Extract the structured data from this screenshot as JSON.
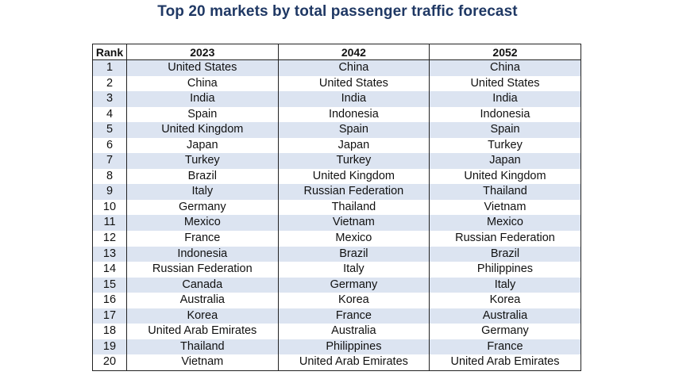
{
  "title": "Top 20 markets by total passenger traffic forecast",
  "colors": {
    "title": "#1f3864",
    "stripe": "#dce4f1",
    "border": "#222222"
  },
  "table": {
    "headers": [
      "Rank",
      "2023",
      "2042",
      "2052"
    ],
    "rows": [
      [
        "1",
        "United States",
        "China",
        "China"
      ],
      [
        "2",
        "China",
        "United States",
        "United States"
      ],
      [
        "3",
        "India",
        "India",
        "India"
      ],
      [
        "4",
        "Spain",
        "Indonesia",
        "Indonesia"
      ],
      [
        "5",
        "United Kingdom",
        "Spain",
        "Spain"
      ],
      [
        "6",
        "Japan",
        "Japan",
        "Turkey"
      ],
      [
        "7",
        "Turkey",
        "Turkey",
        "Japan"
      ],
      [
        "8",
        "Brazil",
        "United Kingdom",
        "United Kingdom"
      ],
      [
        "9",
        "Italy",
        "Russian Federation",
        "Thailand"
      ],
      [
        "10",
        "Germany",
        "Thailand",
        "Vietnam"
      ],
      [
        "11",
        "Mexico",
        "Vietnam",
        "Mexico"
      ],
      [
        "12",
        "France",
        "Mexico",
        "Russian Federation"
      ],
      [
        "13",
        "Indonesia",
        "Brazil",
        "Brazil"
      ],
      [
        "14",
        "Russian Federation",
        "Italy",
        "Philippines"
      ],
      [
        "15",
        "Canada",
        "Germany",
        "Italy"
      ],
      [
        "16",
        "Australia",
        "Korea",
        "Korea"
      ],
      [
        "17",
        "Korea",
        "France",
        "Australia"
      ],
      [
        "18",
        "United Arab Emirates",
        "Australia",
        "Germany"
      ],
      [
        "19",
        "Thailand",
        "Philippines",
        "France"
      ],
      [
        "20",
        "Vietnam",
        "United Arab Emirates",
        "United Arab Emirates"
      ]
    ]
  }
}
